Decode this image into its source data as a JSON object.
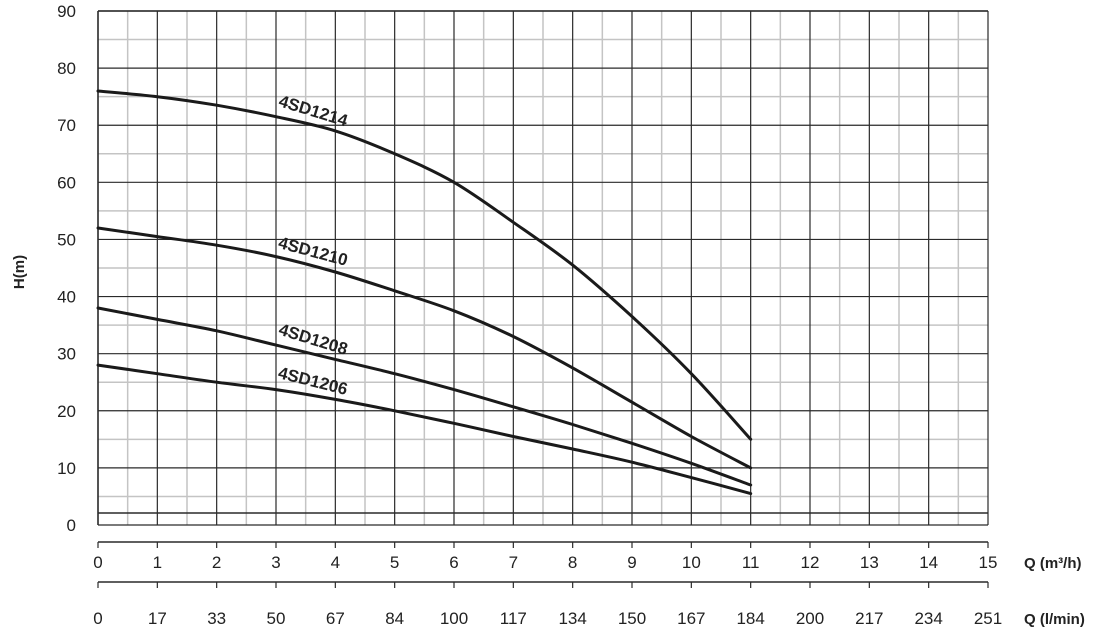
{
  "chart_data": {
    "type": "line",
    "title": "",
    "ylabel": "H(m)",
    "xlabel": "Q (m³/h)",
    "x2label": "Q (l/min)",
    "xlim": [
      0,
      15
    ],
    "ylim": [
      0,
      90
    ],
    "x_ticks": [
      "0",
      "1",
      "2",
      "3",
      "4",
      "5",
      "6",
      "7",
      "8",
      "9",
      "10",
      "11",
      "12",
      "13",
      "14",
      "15"
    ],
    "x2_ticks": [
      "0",
      "17",
      "33",
      "50",
      "67",
      "84",
      "100",
      "117",
      "134",
      "150",
      "167",
      "184",
      "200",
      "217",
      "234",
      "251"
    ],
    "y_ticks": [
      "0",
      "10",
      "20",
      "30",
      "40",
      "50",
      "60",
      "70",
      "80",
      "90"
    ],
    "grid": true,
    "series": [
      {
        "name": "4SD1214",
        "x": [
          0,
          1,
          2,
          3,
          4,
          5,
          6,
          7,
          8,
          9,
          10,
          11
        ],
        "y": [
          76,
          75,
          73.5,
          71.5,
          69,
          65,
          60,
          53,
          45.5,
          36.5,
          26.5,
          15
        ]
      },
      {
        "name": "4SD1210",
        "x": [
          0,
          1,
          2,
          3,
          4,
          5,
          6,
          7,
          8,
          9,
          10,
          11
        ],
        "y": [
          52,
          50.5,
          49,
          47,
          44.3,
          41,
          37.5,
          33,
          27.5,
          21.5,
          15.5,
          10
        ]
      },
      {
        "name": "4SD1208",
        "x": [
          0,
          1,
          2,
          3,
          4,
          5,
          6,
          7,
          8,
          9,
          10,
          11
        ],
        "y": [
          38,
          36,
          34,
          31.5,
          29,
          26.5,
          23.7,
          20.7,
          17.6,
          14.3,
          10.8,
          7
        ]
      },
      {
        "name": "4SD1206",
        "x": [
          0,
          1,
          2,
          3,
          4,
          5,
          6,
          7,
          8,
          9,
          10,
          11
        ],
        "y": [
          28,
          26.5,
          25,
          23.7,
          22,
          20,
          17.8,
          15.5,
          13.3,
          11,
          8.3,
          5.5
        ]
      }
    ]
  }
}
